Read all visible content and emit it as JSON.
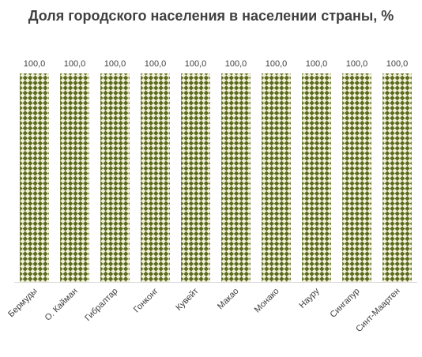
{
  "chart_data": {
    "type": "bar",
    "title": "Доля городского населения в населении страны, %",
    "xlabel": "",
    "ylabel": "",
    "categories": [
      "Бермуды",
      "О. Кайман",
      "Гибралтар",
      "Гонконг",
      "Кувейт",
      "Макао",
      "Монако",
      "Науру",
      "Сингапур",
      "Синт-Маартен"
    ],
    "values": [
      100.0,
      100.0,
      100.0,
      100.0,
      100.0,
      100.0,
      100.0,
      100.0,
      100.0,
      100.0
    ],
    "data_labels": [
      "100,0",
      "100,0",
      "100,0",
      "100,0",
      "100,0",
      "100,0",
      "100,0",
      "100,0",
      "100,0",
      "100,0"
    ],
    "ylim": [
      0,
      100
    ],
    "grid": false,
    "legend": "none",
    "colors": {
      "bar_pattern_dark": "#5a6b1e",
      "bar_pattern_light": "#f2efd9",
      "title": "#404040",
      "text": "#404040",
      "axis": "#d9d9d9"
    }
  }
}
